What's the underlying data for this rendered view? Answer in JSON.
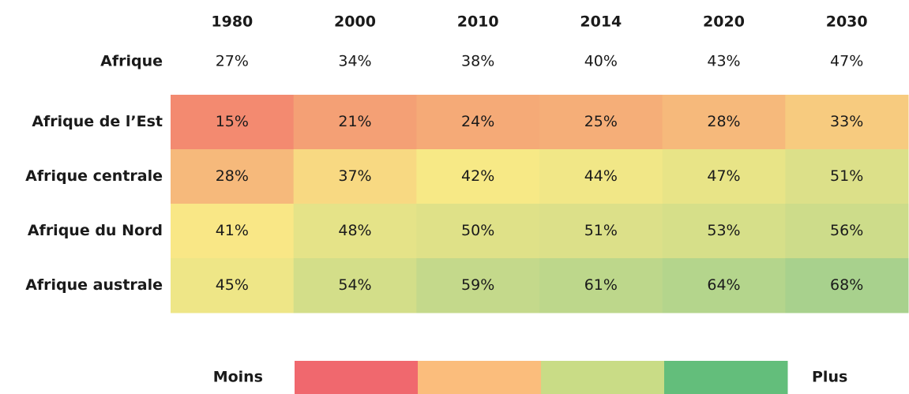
{
  "chart_data": {
    "type": "heatmap",
    "x_categories": [
      "1980",
      "2000",
      "2010",
      "2014",
      "2020",
      "2030"
    ],
    "summary": {
      "name": "Afrique",
      "values": [
        27,
        34,
        38,
        40,
        43,
        47
      ],
      "value_labels": [
        "27%",
        "34%",
        "38%",
        "40%",
        "43%",
        "47%"
      ]
    },
    "y_categories": [
      "Afrique de l’Est",
      "Afrique centrale",
      "Afrique du Nord",
      "Afrique australe"
    ],
    "values": [
      [
        15,
        21,
        24,
        25,
        28,
        33
      ],
      [
        28,
        37,
        42,
        44,
        47,
        51
      ],
      [
        41,
        48,
        50,
        51,
        53,
        56
      ],
      [
        45,
        54,
        59,
        61,
        64,
        68
      ]
    ],
    "value_labels": [
      [
        "15%",
        "21%",
        "24%",
        "25%",
        "28%",
        "33%"
      ],
      [
        "28%",
        "37%",
        "42%",
        "44%",
        "47%",
        "51%"
      ],
      [
        "41%",
        "48%",
        "50%",
        "51%",
        "53%",
        "56%"
      ],
      [
        "45%",
        "54%",
        "59%",
        "61%",
        "64%",
        "68%"
      ]
    ],
    "color_scale": [
      "#f38a70",
      "#f9e986",
      "#a8d18d"
    ],
    "legend": {
      "low_label": "Moins",
      "high_label": "Plus",
      "colors": [
        "#f0686e",
        "#fbbd7c",
        "#c9dc86",
        "#63be7b"
      ]
    }
  }
}
